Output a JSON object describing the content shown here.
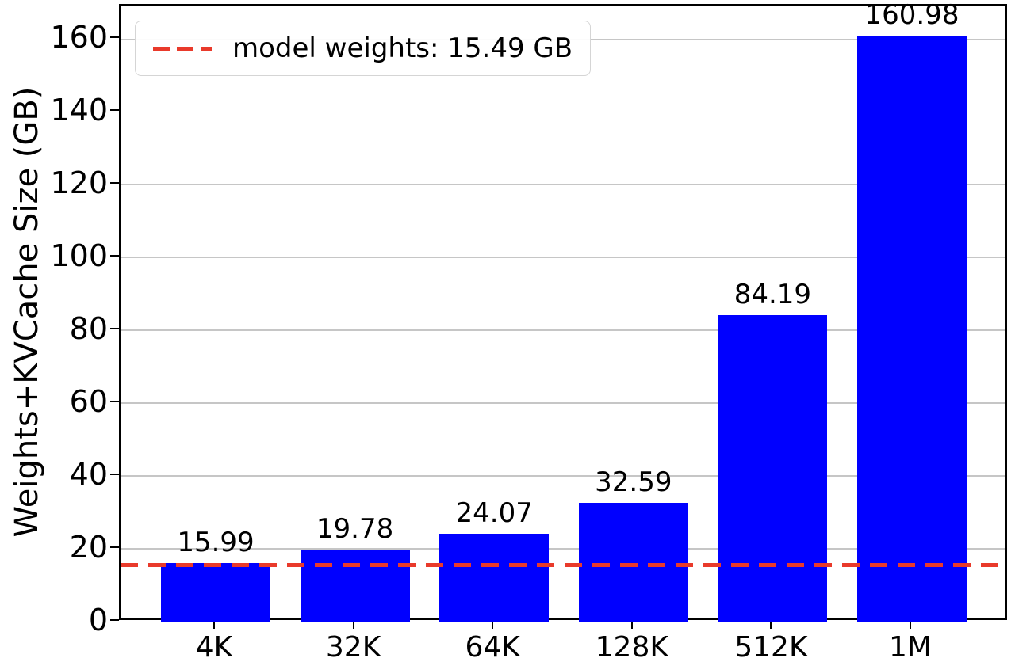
{
  "figure": {
    "ylabel": "Weights+KVCache Size (GB)",
    "legend_label": "model weights: 15.49 GB"
  },
  "chart_data": {
    "type": "bar",
    "categories": [
      "4K",
      "32K",
      "64K",
      "128K",
      "512K",
      "1M"
    ],
    "values": [
      15.99,
      19.78,
      24.07,
      32.59,
      84.19,
      160.98
    ],
    "bar_labels": [
      "15.99",
      "19.78",
      "24.07",
      "32.59",
      "84.19",
      "160.98"
    ],
    "title": "",
    "xlabel": "",
    "ylabel": "Weights+KVCache Size (GB)",
    "ylim": [
      0,
      169.2
    ],
    "yticks": [
      0,
      20,
      40,
      60,
      80,
      100,
      120,
      140,
      160
    ],
    "grid": true,
    "bar_color": "#0000ff",
    "gridline_color": "#c6c6c6",
    "threshold_line": {
      "value": 15.49,
      "label": "model weights: 15.49 GB",
      "color": "#e93a2b",
      "style": "dashed"
    },
    "legend": {
      "position": "upper left",
      "entries": [
        {
          "label": "model weights: 15.49 GB",
          "style": "dashed",
          "color": "#e93a2b"
        }
      ]
    }
  }
}
